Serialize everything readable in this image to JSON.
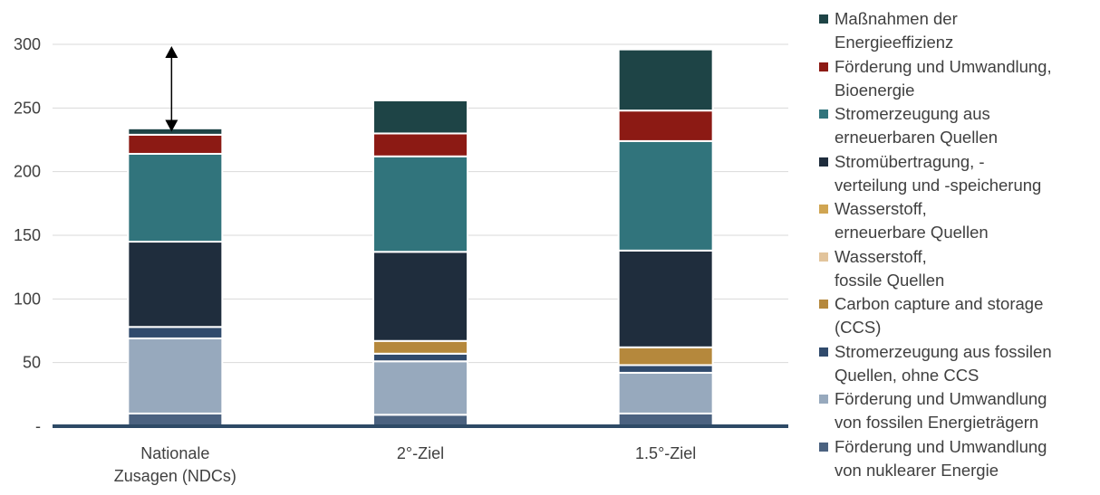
{
  "chart_data": {
    "type": "bar",
    "stacked": true,
    "categories": [
      "Nationale\nZusagen (NDCs)",
      "2°-Ziel",
      "1.5°-Ziel"
    ],
    "y_ticks": [
      "-",
      "50",
      "100",
      "150",
      "200",
      "250",
      "300"
    ],
    "ylim": [
      0,
      300
    ],
    "grid": true,
    "legend_position": "right",
    "series": [
      {
        "name": "Förderung und Umwandlung\nvon nuklearer Energie",
        "color": "#4b6280",
        "values": [
          10,
          9,
          10
        ]
      },
      {
        "name": "Förderung und Umwandlung\nvon fossilen Energieträgern",
        "color": "#97a9bd",
        "values": [
          59,
          42,
          32
        ]
      },
      {
        "name": "Stromerzeugung aus fossilen\nQuellen, ohne CCS",
        "color": "#304a6c",
        "values": [
          9,
          6,
          6
        ]
      },
      {
        "name": "Carbon capture and storage\n(CCS)",
        "color": "#b5883c",
        "values": [
          0,
          10,
          14
        ]
      },
      {
        "name": "Wasserstoff,\nfossile Quellen",
        "color": "#e2c49c",
        "values": [
          0,
          0,
          0
        ]
      },
      {
        "name": "Wasserstoff,\nerneuerbare Quellen",
        "color": "#d0a552",
        "values": [
          0,
          0,
          0
        ]
      },
      {
        "name": "Stromübertragung, -\nverteilung und -speicherung",
        "color": "#1f2d3d",
        "values": [
          67,
          70,
          76
        ]
      },
      {
        "name": "Stromerzeugung aus\nerneuerbaren Quellen",
        "color": "#31747c",
        "values": [
          69,
          75,
          86
        ]
      },
      {
        "name": "Förderung und Umwandlung,\nBioenergie",
        "color": "#8c1a14",
        "values": [
          15,
          18,
          24
        ]
      },
      {
        "name": "Maßnahmen der\nEnergieeffizienz",
        "color": "#1e4446",
        "values": [
          5,
          26,
          48
        ]
      }
    ],
    "annotations": [
      {
        "type": "double-arrow",
        "category_index": 0,
        "y_from": 230,
        "y_to": 300
      }
    ]
  }
}
